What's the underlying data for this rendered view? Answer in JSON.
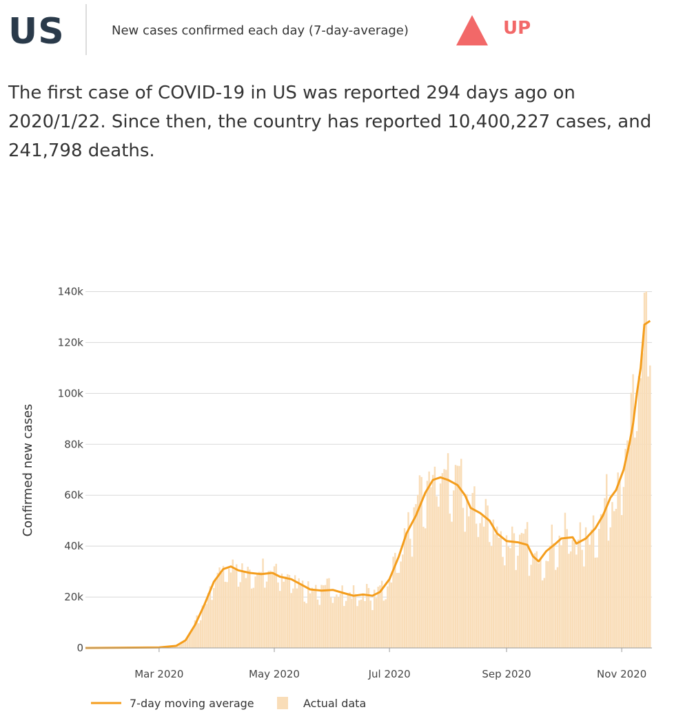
{
  "header": {
    "country": "US",
    "metric_label": "New cases confirmed each day (7-day-average)",
    "trend_label": "UP",
    "trend_color": "#f26868"
  },
  "summary": {
    "text": "The first case of COVID-19 in US was reported 294 days ago on 2020/1/22. Since then, the country has reported 10,400,227 cases, and 241,798 deaths."
  },
  "chart_data": {
    "type": "bar",
    "xlabel": "",
    "ylabel": "Confirmed new cases",
    "start_date": "2020-01-22",
    "x_range": [
      "2020-01-22",
      "2020-11-10"
    ],
    "ylim": [
      0,
      145000
    ],
    "y_ticks": [
      0,
      20000,
      40000,
      60000,
      80000,
      100000,
      120000,
      140000
    ],
    "y_tick_labels": [
      "0",
      "20k",
      "40k",
      "60k",
      "80k",
      "100k",
      "120k",
      "140k"
    ],
    "x_ticks": [
      "2020-03-01",
      "2020-05-01",
      "2020-07-01",
      "2020-09-01",
      "2020-11-01"
    ],
    "x_tick_labels": [
      "Mar 2020",
      "May 2020",
      "Jul 2020",
      "Sep 2020",
      "Nov 2020"
    ],
    "grid": true,
    "legend_position": "bottom-left",
    "series": [
      {
        "name": "7-day moving average",
        "kind": "line",
        "color": "#f49d1c",
        "points": [
          [
            "2020-01-22",
            0
          ],
          [
            "2020-03-01",
            200
          ],
          [
            "2020-03-10",
            800
          ],
          [
            "2020-03-15",
            3000
          ],
          [
            "2020-03-20",
            9000
          ],
          [
            "2020-03-25",
            17000
          ],
          [
            "2020-03-30",
            26000
          ],
          [
            "2020-04-04",
            31000
          ],
          [
            "2020-04-08",
            32000
          ],
          [
            "2020-04-12",
            30500
          ],
          [
            "2020-04-18",
            29500
          ],
          [
            "2020-04-24",
            29000
          ],
          [
            "2020-04-30",
            29500
          ],
          [
            "2020-05-04",
            28000
          ],
          [
            "2020-05-10",
            27000
          ],
          [
            "2020-05-15",
            25000
          ],
          [
            "2020-05-20",
            23000
          ],
          [
            "2020-05-26",
            22500
          ],
          [
            "2020-06-01",
            22800
          ],
          [
            "2020-06-07",
            21500
          ],
          [
            "2020-06-12",
            20500
          ],
          [
            "2020-06-17",
            21000
          ],
          [
            "2020-06-22",
            20500
          ],
          [
            "2020-06-26",
            22000
          ],
          [
            "2020-07-01",
            27000
          ],
          [
            "2020-07-06",
            36000
          ],
          [
            "2020-07-10",
            45000
          ],
          [
            "2020-07-15",
            52000
          ],
          [
            "2020-07-20",
            61000
          ],
          [
            "2020-07-24",
            66000
          ],
          [
            "2020-07-28",
            67000
          ],
          [
            "2020-08-01",
            66000
          ],
          [
            "2020-08-06",
            64000
          ],
          [
            "2020-08-10",
            60000
          ],
          [
            "2020-08-13",
            55000
          ],
          [
            "2020-08-18",
            53000
          ],
          [
            "2020-08-23",
            50000
          ],
          [
            "2020-08-27",
            45000
          ],
          [
            "2020-09-01",
            42000
          ],
          [
            "2020-09-07",
            41500
          ],
          [
            "2020-09-12",
            40500
          ],
          [
            "2020-09-15",
            36000
          ],
          [
            "2020-09-18",
            34000
          ],
          [
            "2020-09-22",
            38000
          ],
          [
            "2020-09-27",
            41000
          ],
          [
            "2020-09-30",
            43000
          ],
          [
            "2020-10-06",
            43500
          ],
          [
            "2020-10-08",
            41000
          ],
          [
            "2020-10-13",
            43000
          ],
          [
            "2020-10-18",
            47000
          ],
          [
            "2020-10-22",
            52000
          ],
          [
            "2020-10-26",
            59000
          ],
          [
            "2020-10-29",
            62000
          ],
          [
            "2020-11-02",
            70000
          ],
          [
            "2020-11-05",
            80000
          ],
          [
            "2020-11-07",
            88000
          ],
          [
            "2020-11-09",
            100000
          ],
          [
            "2020-11-11",
            110000
          ],
          [
            "2020-11-13",
            127000
          ],
          [
            "2020-11-16",
            128500
          ]
        ]
      },
      {
        "name": "Actual data",
        "kind": "bar",
        "color": "#f9ddb8",
        "note": "daily values estimated from figure (approx. series)"
      }
    ]
  },
  "legend": {
    "line_label": "7-day moving average",
    "bar_label": "Actual data"
  }
}
